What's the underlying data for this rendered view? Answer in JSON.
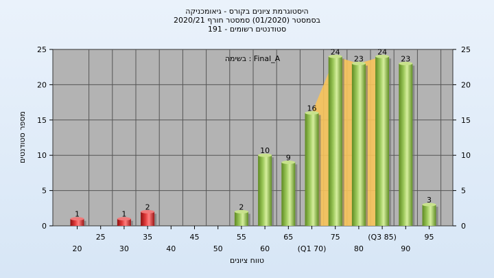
{
  "chart_data": {
    "type": "bar",
    "title_lines": [
      "היסטוגרמת ציונים בקורס - גיאומכניקה",
      "בסמסטר  (01/2020)  סמסטר חורף 2020/21",
      "סטודנטים רשומים - 191"
    ],
    "xlabel": "טווח ציונים",
    "ylabel": "מספר סטודנטים",
    "legend_text": "בשימה : Final_A",
    "ylim": [
      0,
      25
    ],
    "y_ticks": [
      0,
      5,
      10,
      15,
      20,
      25
    ],
    "categories": [
      "20",
      "25",
      "30",
      "35",
      "40",
      "45",
      "50",
      "55",
      "60",
      "65",
      "(Q1 70)",
      "75",
      "80",
      "(Q3 85)",
      "90",
      "95"
    ],
    "values": [
      1,
      0,
      1,
      2,
      0,
      0,
      0,
      2,
      10,
      9,
      16,
      24,
      23,
      24,
      23,
      3
    ],
    "failing_color": "#d92b2b",
    "passing_color": "#8fc04a",
    "plot_background": "#b3b3b3",
    "quartile_band_color": "#f7c35a",
    "grid": true
  }
}
